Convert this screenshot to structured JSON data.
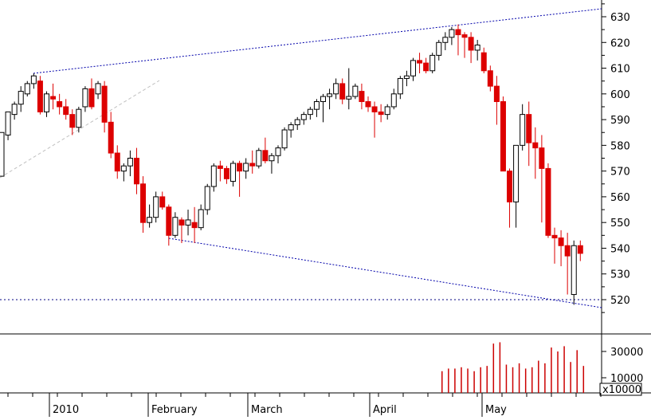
{
  "chart_data": {
    "type": "candlestick",
    "price_axis": {
      "ticks": [
        "630",
        "620",
        "610",
        "600",
        "590",
        "580",
        "570",
        "560",
        "550",
        "540",
        "530",
        "520"
      ],
      "ylim": [
        510,
        633
      ]
    },
    "volume_axis": {
      "ticks": [
        "30000",
        "10000"
      ],
      "unit_label": "x10000"
    },
    "time_axis": {
      "labels": [
        "2010",
        "February",
        "March",
        "April",
        "May"
      ]
    },
    "colors": {
      "up_fill": "#ffffff",
      "down_fill": "#dd0000",
      "candle_outline": "#000000",
      "volume": "#cc0000",
      "trendline": "#0000aa",
      "reference_line": "#000080",
      "faint_line": "#c0c0c0"
    },
    "candles": [
      [
        568,
        585,
        568,
        585
      ],
      [
        584,
        593,
        582,
        593
      ],
      [
        592,
        597,
        590,
        596
      ],
      [
        596,
        603,
        593,
        601
      ],
      [
        600,
        605,
        599,
        604
      ],
      [
        604,
        608,
        602,
        607
      ],
      [
        605,
        607,
        592,
        593
      ],
      [
        593,
        601,
        591,
        600
      ],
      [
        599,
        604,
        594,
        598
      ],
      [
        597,
        600,
        592,
        595
      ],
      [
        595,
        598,
        590,
        592
      ],
      [
        592,
        594,
        584,
        587
      ],
      [
        587,
        595,
        585,
        594
      ],
      [
        595,
        603,
        593,
        602
      ],
      [
        602,
        606,
        594,
        595
      ],
      [
        600,
        605,
        598,
        604
      ],
      [
        603,
        605,
        585,
        589
      ],
      [
        589,
        593,
        575,
        577
      ],
      [
        577,
        580,
        567,
        570
      ],
      [
        570,
        573,
        566,
        572
      ],
      [
        572,
        578,
        568,
        575
      ],
      [
        575,
        579,
        561,
        565
      ],
      [
        565,
        568,
        546,
        550
      ],
      [
        550,
        557,
        548,
        552
      ],
      [
        552,
        562,
        550,
        560
      ],
      [
        560,
        562,
        555,
        556
      ],
      [
        556,
        557,
        541,
        545
      ],
      [
        545,
        554,
        544,
        552
      ],
      [
        551,
        552,
        542,
        549
      ],
      [
        549,
        555,
        545,
        551
      ],
      [
        550,
        556,
        542,
        548
      ],
      [
        548,
        557,
        547,
        555
      ],
      [
        555,
        565,
        553,
        564
      ],
      [
        564,
        573,
        562,
        572
      ],
      [
        572,
        574,
        566,
        571
      ],
      [
        571,
        572,
        565,
        567
      ],
      [
        566,
        574,
        564,
        573
      ],
      [
        573,
        574,
        560,
        570
      ],
      [
        570,
        575,
        567,
        573
      ],
      [
        573,
        578,
        569,
        572
      ],
      [
        572,
        579,
        571,
        578
      ],
      [
        578,
        583,
        573,
        574
      ],
      [
        574,
        577,
        569,
        576
      ],
      [
        576,
        580,
        573,
        579
      ],
      [
        579,
        587,
        578,
        586
      ],
      [
        586,
        589,
        583,
        588
      ],
      [
        588,
        591,
        586,
        590
      ],
      [
        590,
        593,
        588,
        592
      ],
      [
        592,
        595,
        590,
        594
      ],
      [
        594,
        598,
        591,
        597
      ],
      [
        597,
        600,
        589,
        599
      ],
      [
        599,
        602,
        594,
        600
      ],
      [
        600,
        606,
        598,
        604
      ],
      [
        604,
        606,
        596,
        598
      ],
      [
        598,
        610,
        594,
        599
      ],
      [
        599,
        604,
        598,
        603
      ],
      [
        601,
        604,
        594,
        597
      ],
      [
        597,
        599,
        593,
        595
      ],
      [
        595,
        597,
        583,
        593
      ],
      [
        593,
        596,
        589,
        592
      ],
      [
        592,
        596,
        590,
        595
      ],
      [
        595,
        602,
        594,
        600
      ],
      [
        600,
        607,
        598,
        606
      ],
      [
        606,
        609,
        603,
        607
      ],
      [
        607,
        614,
        605,
        613
      ],
      [
        613,
        616,
        608,
        612
      ],
      [
        612,
        614,
        608,
        609
      ],
      [
        609,
        616,
        608,
        615
      ],
      [
        615,
        621,
        613,
        620
      ],
      [
        620,
        624,
        617,
        622
      ],
      [
        622,
        626,
        619,
        625
      ],
      [
        625,
        627,
        615,
        623
      ],
      [
        623,
        624,
        614,
        622
      ],
      [
        622,
        624,
        612,
        617
      ],
      [
        617,
        621,
        613,
        619
      ],
      [
        616,
        618,
        608,
        609
      ],
      [
        609,
        611,
        601,
        603
      ],
      [
        603,
        607,
        588,
        597
      ],
      [
        597,
        599,
        570,
        570
      ],
      [
        570,
        571,
        548,
        558
      ],
      [
        558,
        580,
        548,
        580
      ],
      [
        580,
        596,
        578,
        592
      ],
      [
        592,
        597,
        572,
        581
      ],
      [
        581,
        587,
        567,
        579
      ],
      [
        579,
        584,
        550,
        571
      ],
      [
        571,
        573,
        544,
        545
      ],
      [
        545,
        548,
        534,
        544
      ],
      [
        544,
        547,
        533,
        541
      ],
      [
        541,
        546,
        522,
        537
      ],
      [
        522,
        543,
        518,
        541
      ],
      [
        541,
        543,
        535,
        538
      ]
    ],
    "volume": [
      0,
      0,
      0,
      0,
      0,
      0,
      0,
      0,
      0,
      0,
      0,
      0,
      0,
      0,
      0,
      0,
      0,
      0,
      0,
      0,
      0,
      0,
      0,
      0,
      0,
      0,
      0,
      0,
      0,
      0,
      0,
      0,
      0,
      0,
      0,
      0,
      0,
      0,
      0,
      0,
      0,
      0,
      0,
      0,
      0,
      0,
      0,
      0,
      0,
      0,
      0,
      0,
      0,
      0,
      0,
      0,
      0,
      0,
      0,
      0,
      0,
      0,
      0,
      0,
      0,
      0,
      0,
      0,
      0,
      0,
      0,
      0,
      0,
      0,
      0,
      0,
      0,
      0,
      0,
      0,
      0,
      0,
      0,
      0,
      0,
      0,
      0,
      0,
      0,
      0,
      0
    ],
    "volume_tail": [
      15000,
      17000,
      17000,
      18000,
      17000,
      15000,
      18000,
      19000,
      36000,
      37000,
      20000,
      18000,
      21000,
      17000,
      18000,
      23000,
      21000,
      33000,
      30000,
      34000,
      22000,
      31000,
      19000
    ]
  }
}
